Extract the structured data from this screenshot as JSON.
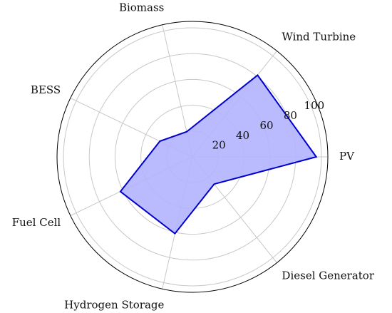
{
  "chart_data": {
    "type": "radar",
    "categories": [
      "PV",
      "Wind Turbine",
      "Biomass",
      "BESS",
      "Fuel Cell",
      "Hydrogen Storage",
      "Diesel Generator"
    ],
    "values": [
      96,
      81,
      20,
      28,
      62,
      61,
      27
    ],
    "color": "#0000cc",
    "fill": "#b3b3ff",
    "rlim": [
      0,
      105
    ],
    "rticks": [
      20,
      40,
      60,
      80,
      100
    ],
    "grid": true
  }
}
